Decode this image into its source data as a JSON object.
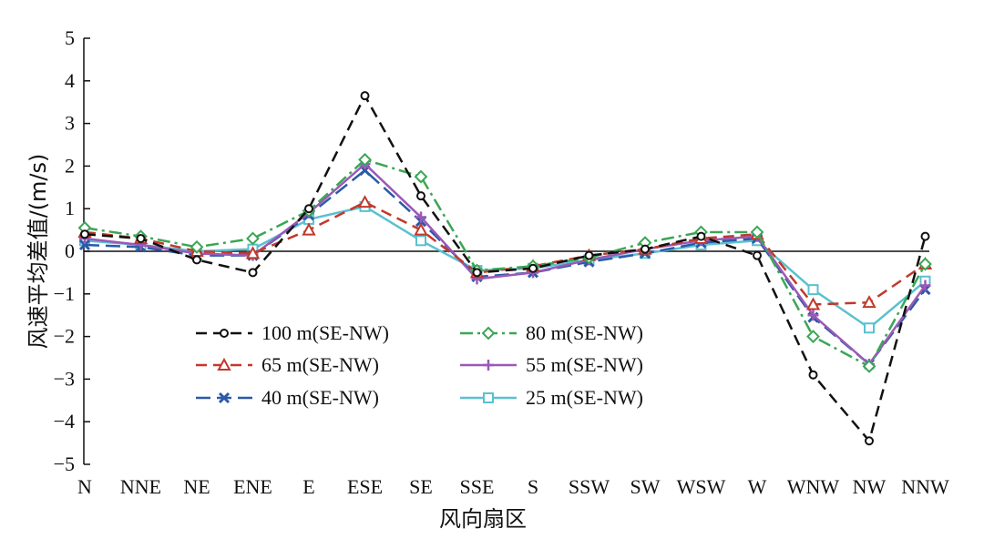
{
  "chart_data": {
    "type": "line",
    "title": "",
    "xlabel": "风向扇区",
    "ylabel": "风速平均差值/(m/s)",
    "ylim": [
      -5,
      5
    ],
    "yticks": [
      "5",
      "4",
      "3",
      "2",
      "1",
      "0",
      "−1",
      "−2",
      "−3",
      "−4",
      "−5"
    ],
    "categories": [
      "N",
      "NNE",
      "NE",
      "ENE",
      "E",
      "ESE",
      "SE",
      "SSE",
      "S",
      "SSW",
      "SW",
      "WSW",
      "W",
      "WNW",
      "NW",
      "NNW"
    ],
    "legend_position": "bottom-left",
    "series": [
      {
        "name": "100 m(SE-NW)",
        "color": "#111111",
        "marker": "circle",
        "dash": "dashed",
        "values": [
          0.4,
          0.3,
          -0.2,
          -0.5,
          1.0,
          3.65,
          1.3,
          -0.5,
          -0.4,
          -0.1,
          0.05,
          0.35,
          -0.1,
          -2.9,
          -4.45,
          0.35
        ]
      },
      {
        "name": "80 m(SE-NW)",
        "color": "#3aa655",
        "marker": "diamond",
        "dash": "dashdot",
        "values": [
          0.55,
          0.35,
          0.1,
          0.3,
          0.95,
          2.15,
          1.75,
          -0.45,
          -0.35,
          -0.15,
          0.2,
          0.45,
          0.45,
          -2.0,
          -2.7,
          -0.3
        ]
      },
      {
        "name": "65 m(SE-NW)",
        "color": "#c0392b",
        "marker": "triangle",
        "dash": "dashed",
        "values": [
          0.45,
          0.3,
          0.0,
          -0.05,
          0.5,
          1.15,
          0.5,
          -0.5,
          -0.35,
          -0.1,
          0.05,
          0.3,
          0.4,
          -1.25,
          -1.2,
          -0.3
        ]
      },
      {
        "name": "55 m(SE-NW)",
        "color": "#9b59b6",
        "marker": "plus",
        "dash": "solid",
        "values": [
          0.3,
          0.15,
          -0.05,
          -0.1,
          0.9,
          2.05,
          0.8,
          -0.65,
          -0.5,
          -0.2,
          0.05,
          0.25,
          0.35,
          -1.5,
          -2.65,
          -0.8
        ]
      },
      {
        "name": "40 m(SE-NW)",
        "color": "#2b5aa8",
        "marker": "x",
        "dash": "longdash",
        "values": [
          0.15,
          0.1,
          -0.1,
          -0.1,
          0.85,
          1.9,
          0.7,
          -0.6,
          -0.5,
          -0.25,
          -0.05,
          0.2,
          0.3,
          -1.55,
          -2.65,
          -0.9
        ]
      },
      {
        "name": "25 m(SE-NW)",
        "color": "#5bc0d0",
        "marker": "square",
        "dash": "solid",
        "values": [
          0.25,
          0.15,
          0.0,
          0.05,
          0.75,
          1.05,
          0.25,
          -0.45,
          -0.4,
          -0.2,
          -0.05,
          0.15,
          0.25,
          -0.9,
          -1.8,
          -0.7
        ]
      }
    ]
  }
}
